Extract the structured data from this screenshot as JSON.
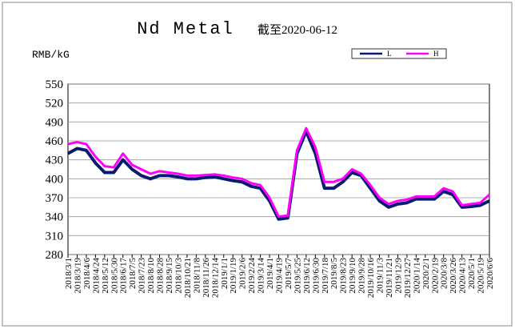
{
  "chart_data": {
    "type": "line",
    "title": "Nd Metal",
    "subtitle": "截至2020-06-12",
    "y_label": "RMB/kG",
    "categories": [
      "2018/3/1",
      "2018/3/19",
      "2018/4/6",
      "2018/4/24",
      "2018/5/12",
      "2018/5/30",
      "2018/6/17",
      "2018/7/5",
      "2018/7/23",
      "2018/8/10",
      "2018/8/28",
      "2018/9/15",
      "2018/10/3",
      "2018/10/21",
      "2018/11/8",
      "2018/11/26",
      "2018/12/14",
      "2019/1/1",
      "2019/1/19",
      "2019/2/6",
      "2019/2/24",
      "2019/3/14",
      "2019/4/1",
      "2019/4/19",
      "2019/5/7",
      "2019/5/25",
      "2019/6/12",
      "2019/6/30",
      "2019/7/18",
      "2019/8/5",
      "2019/8/23",
      "2019/9/10",
      "2019/9/28",
      "2019/10/16",
      "2019/11/3",
      "2019/11/21",
      "2019/12/9",
      "2019/12/27",
      "2020/1/14",
      "2020/2/1",
      "2020/2/19",
      "2020/3/8",
      "2020/3/26",
      "2020/4/13",
      "2020/5/1",
      "2020/5/19",
      "2020/6/6"
    ],
    "series": [
      {
        "name": "L",
        "color": "#0a1a6e",
        "values": [
          440,
          448,
          445,
          425,
          410,
          410,
          430,
          415,
          405,
          400,
          405,
          405,
          403,
          400,
          400,
          402,
          403,
          400,
          397,
          395,
          388,
          385,
          365,
          336,
          338,
          440,
          475,
          440,
          385,
          385,
          395,
          410,
          405,
          385,
          365,
          355,
          360,
          362,
          368,
          368,
          368,
          380,
          375,
          355,
          356,
          358,
          365
        ]
      },
      {
        "name": "H",
        "color": "#ff00ff",
        "values": [
          455,
          458,
          455,
          435,
          420,
          418,
          440,
          422,
          415,
          408,
          412,
          410,
          408,
          405,
          405,
          406,
          407,
          405,
          402,
          400,
          393,
          390,
          370,
          340,
          342,
          445,
          480,
          450,
          395,
          395,
          400,
          415,
          408,
          390,
          370,
          360,
          365,
          367,
          372,
          372,
          372,
          385,
          380,
          358,
          360,
          362,
          375
        ]
      }
    ],
    "ylim": [
      280,
      550
    ],
    "yticks": [
      280,
      310,
      340,
      370,
      400,
      430,
      460,
      490,
      520,
      550
    ],
    "grid": true,
    "legend": "top-right"
  }
}
